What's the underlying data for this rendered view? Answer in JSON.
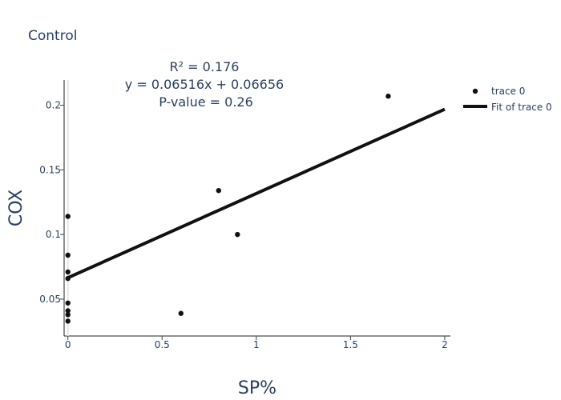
{
  "chart_data": {
    "type": "scatter",
    "title": "Control",
    "xlabel": "SP%",
    "ylabel": "COX",
    "xlim": [
      -0.02,
      2.03
    ],
    "ylim": [
      0.0215,
      0.2195
    ],
    "xticks": [
      0,
      0.5,
      1,
      1.5,
      2
    ],
    "xtick_labels": [
      "0",
      "0.5",
      "1",
      "1.5",
      "2"
    ],
    "yticks": [
      0.05,
      0.1,
      0.15,
      0.2
    ],
    "ytick_labels": [
      "0.05",
      "0.1",
      "0.15",
      "0.2"
    ],
    "grid": false,
    "legend_position": "top-right",
    "annotation_lines": [
      "R² = 0.176",
      "y = 0.06516x + 0.06656",
      "P-value = 0.26"
    ],
    "series": [
      {
        "name": "trace 0",
        "mode": "markers",
        "color": "#111111",
        "points": [
          {
            "x": 0,
            "y": 0.114
          },
          {
            "x": 0,
            "y": 0.084
          },
          {
            "x": 0,
            "y": 0.071
          },
          {
            "x": 0,
            "y": 0.066
          },
          {
            "x": 0,
            "y": 0.047
          },
          {
            "x": 0,
            "y": 0.041
          },
          {
            "x": 0,
            "y": 0.038
          },
          {
            "x": 0,
            "y": 0.033
          },
          {
            "x": 0.6,
            "y": 0.039
          },
          {
            "x": 0.8,
            "y": 0.134
          },
          {
            "x": 0.9,
            "y": 0.1
          },
          {
            "x": 1.7,
            "y": 0.207
          }
        ]
      },
      {
        "name": "Fit of trace 0",
        "mode": "line",
        "color": "#111111",
        "slope": 0.06516,
        "intercept": 0.06656,
        "x_range": [
          0,
          2
        ]
      }
    ]
  }
}
